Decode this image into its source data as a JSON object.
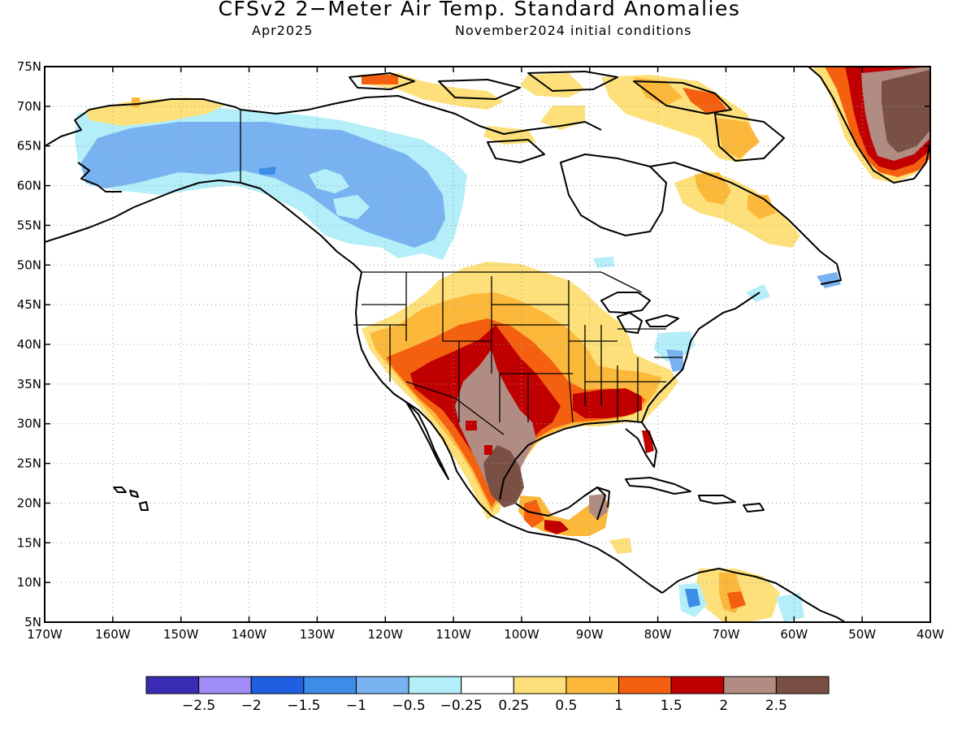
{
  "title": "CFSv2 2−Meter Air Temp. Standard Anomalies",
  "subtitle_left": "Apr2025",
  "subtitle_right": "November2024 initial conditions",
  "lat_ticks": [
    "75N",
    "70N",
    "65N",
    "60N",
    "55N",
    "50N",
    "45N",
    "40N",
    "35N",
    "30N",
    "25N",
    "20N",
    "15N",
    "10N",
    "5N"
  ],
  "lon_ticks": [
    "170W",
    "160W",
    "150W",
    "140W",
    "130W",
    "120W",
    "110W",
    "100W",
    "90W",
    "80W",
    "70W",
    "60W",
    "50W",
    "40W"
  ],
  "colorbar": {
    "colors": [
      "#3a2bb3",
      "#a08cf7",
      "#2060e0",
      "#3c8ce8",
      "#78b2f0",
      "#b4eef8",
      "#ffffff",
      "#fde07a",
      "#fbb83a",
      "#f56010",
      "#c00000",
      "#b08c82",
      "#7a5044"
    ],
    "labels": [
      "−2.5",
      "−2",
      "−1.5",
      "−1",
      "−0.5",
      "−0.25",
      "0.25",
      "0.5",
      "1",
      "1.5",
      "2",
      "2.5"
    ]
  }
}
